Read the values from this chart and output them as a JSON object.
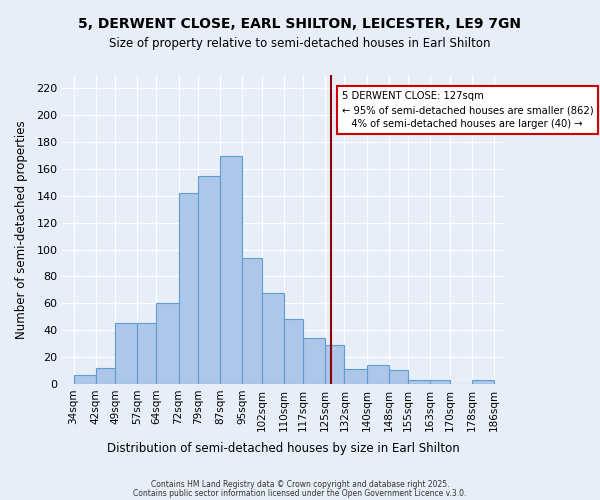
{
  "title_line1": "5, DERWENT CLOSE, EARL SHILTON, LEICESTER, LE9 7GN",
  "title_line2": "Size of property relative to semi-detached houses in Earl Shilton",
  "xlabel": "Distribution of semi-detached houses by size in Earl Shilton",
  "ylabel": "Number of semi-detached properties",
  "bin_labels": [
    "34sqm",
    "42sqm",
    "49sqm",
    "57sqm",
    "64sqm",
    "72sqm",
    "79sqm",
    "87sqm",
    "95sqm",
    "102sqm",
    "110sqm",
    "117sqm",
    "125sqm",
    "132sqm",
    "140sqm",
    "148sqm",
    "155sqm",
    "163sqm",
    "170sqm",
    "178sqm",
    "186sqm"
  ],
  "bin_edges": [
    34,
    42,
    49,
    57,
    64,
    72,
    79,
    87,
    95,
    102,
    110,
    117,
    125,
    132,
    140,
    148,
    155,
    163,
    170,
    178,
    186
  ],
  "counts": [
    7,
    12,
    45,
    45,
    60,
    142,
    155,
    170,
    94,
    68,
    48,
    34,
    29,
    11,
    14,
    10,
    3,
    3,
    0,
    3
  ],
  "bar_color": "#aec6e8",
  "bar_edge_color": "#5a9fd4",
  "vline_x": 127,
  "vline_color": "#8b0000",
  "annotation_text": "5 DERWENT CLOSE: 127sqm\n← 95% of semi-detached houses are smaller (862)\n   4% of semi-detached houses are larger (40) →",
  "annotation_box_color": "white",
  "annotation_box_edge": "#cc0000",
  "ylim": [
    0,
    230
  ],
  "yticks": [
    0,
    20,
    40,
    60,
    80,
    100,
    120,
    140,
    160,
    180,
    200,
    220
  ],
  "background_color": "#e8eef8",
  "grid_color": "#ffffff",
  "footer_line1": "Contains HM Land Registry data © Crown copyright and database right 2025.",
  "footer_line2": "Contains public sector information licensed under the Open Government Licence v.3.0."
}
